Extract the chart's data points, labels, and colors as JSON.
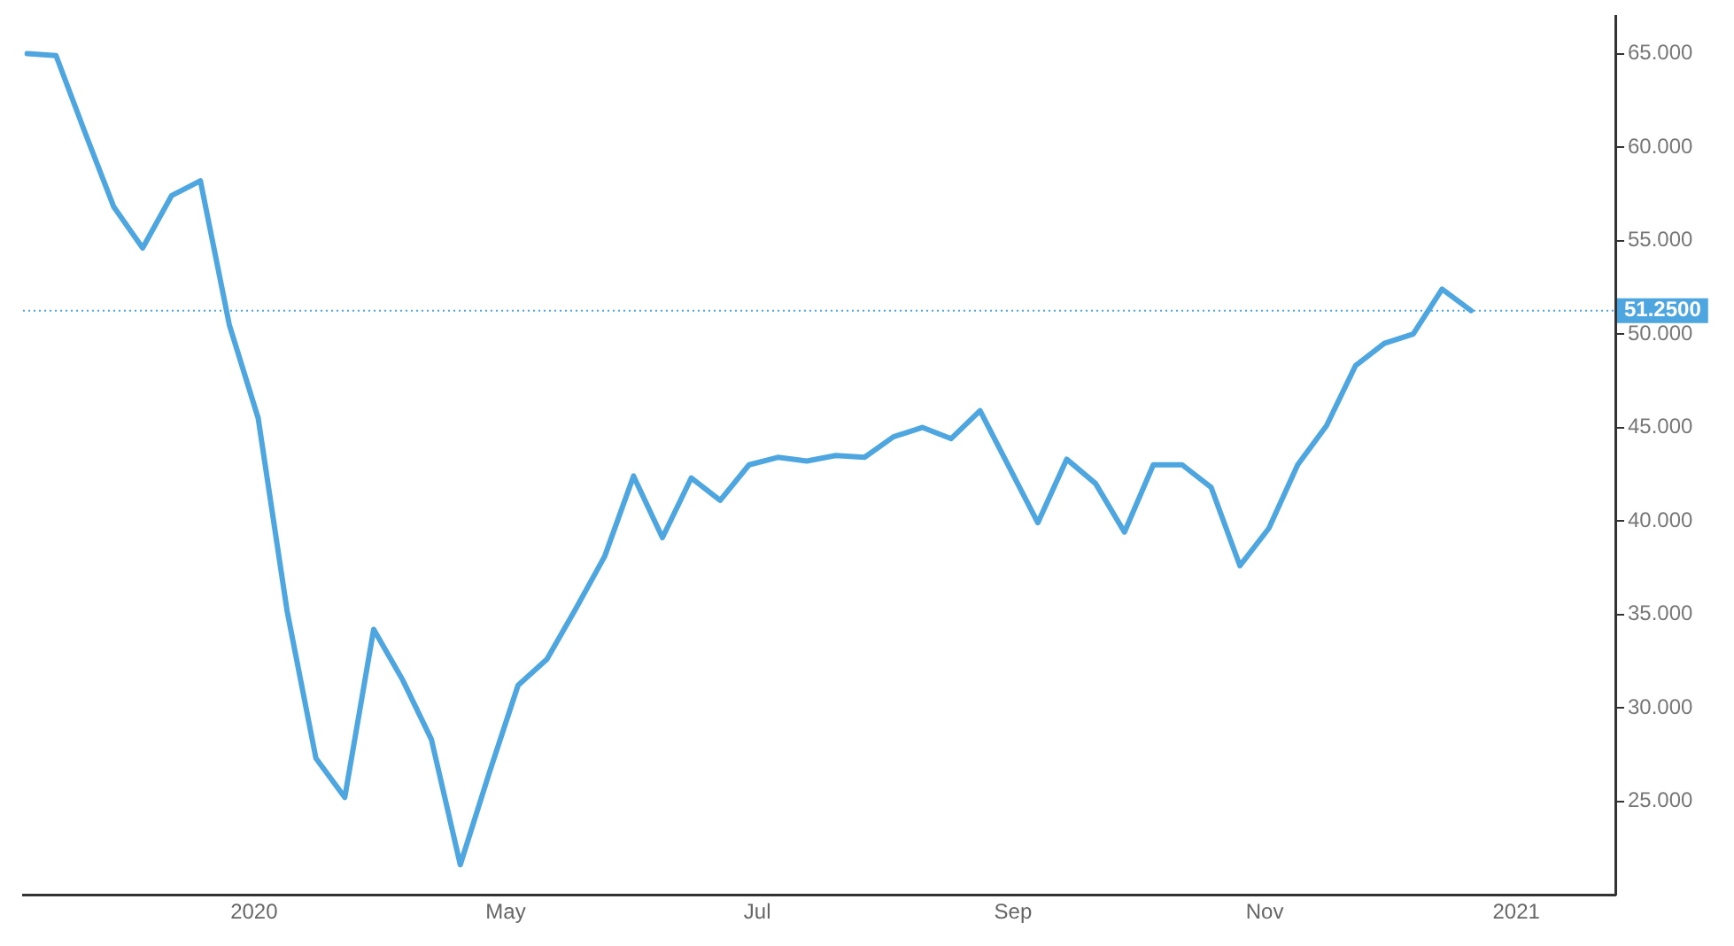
{
  "chart_data": {
    "type": "line",
    "x": [
      "2020-01-06",
      "2020-01-13",
      "2020-01-20",
      "2020-01-27",
      "2020-02-03",
      "2020-02-10",
      "2020-02-17",
      "2020-02-24",
      "2020-03-02",
      "2020-03-09",
      "2020-03-16",
      "2020-03-23",
      "2020-03-30",
      "2020-04-06",
      "2020-04-13",
      "2020-04-20",
      "2020-04-27",
      "2020-05-04",
      "2020-05-11",
      "2020-05-18",
      "2020-05-25",
      "2020-06-01",
      "2020-06-08",
      "2020-06-15",
      "2020-06-22",
      "2020-06-29",
      "2020-07-06",
      "2020-07-13",
      "2020-07-20",
      "2020-07-27",
      "2020-08-03",
      "2020-08-10",
      "2020-08-17",
      "2020-08-24",
      "2020-08-31",
      "2020-09-07",
      "2020-09-14",
      "2020-09-21",
      "2020-09-28",
      "2020-10-05",
      "2020-10-12",
      "2020-10-19",
      "2020-10-26",
      "2020-11-02",
      "2020-11-09",
      "2020-11-16",
      "2020-11-23",
      "2020-11-30",
      "2020-12-07",
      "2020-12-14",
      "2020-12-21"
    ],
    "series": [
      {
        "color": "#4da6df",
        "values": [
          65.0,
          64.9,
          60.8,
          56.8,
          54.6,
          57.4,
          58.2,
          50.5,
          45.5,
          35.2,
          27.3,
          25.2,
          34.2,
          31.5,
          28.3,
          21.6,
          26.5,
          31.2,
          32.6,
          35.3,
          38.1,
          42.4,
          39.1,
          42.3,
          41.1,
          43.0,
          43.4,
          43.2,
          43.5,
          43.4,
          44.5,
          45.0,
          44.4,
          45.9,
          42.9,
          39.9,
          43.3,
          42.0,
          39.4,
          43.0,
          43.0,
          41.8,
          37.6,
          39.6,
          43.0,
          45.1,
          48.3,
          49.5,
          50.0,
          52.4,
          51.25
        ]
      }
    ],
    "xlim": [
      "2020-01-05",
      "2021-01-25"
    ],
    "xticks": [
      {
        "value": "2020-03-01",
        "label": "2020"
      },
      {
        "value": "2020-05-01",
        "label": "May"
      },
      {
        "value": "2020-07-01",
        "label": "Jul"
      },
      {
        "value": "2020-09-01",
        "label": "Sep"
      },
      {
        "value": "2020-11-01",
        "label": "Nov"
      },
      {
        "value": "2021-01-01",
        "label": "2021"
      }
    ],
    "ylim": [
      20,
      67
    ],
    "yticks": [
      {
        "value": 25,
        "label": "25.000"
      },
      {
        "value": 30,
        "label": "30.000"
      },
      {
        "value": 35,
        "label": "35.000"
      },
      {
        "value": 40,
        "label": "40.000"
      },
      {
        "value": 45,
        "label": "45.000"
      },
      {
        "value": 50,
        "label": "50.000"
      },
      {
        "value": 55,
        "label": "55.000"
      },
      {
        "value": 60,
        "label": "60.000"
      },
      {
        "value": 65,
        "label": "65.000"
      }
    ],
    "ref_lines": [
      {
        "axis": "y",
        "value": 51.25,
        "label": "51.2500",
        "color": "#4da6df",
        "line_style": "dotted"
      }
    ],
    "grid": false,
    "legend": false,
    "marker": "none",
    "line_style": "solid"
  }
}
